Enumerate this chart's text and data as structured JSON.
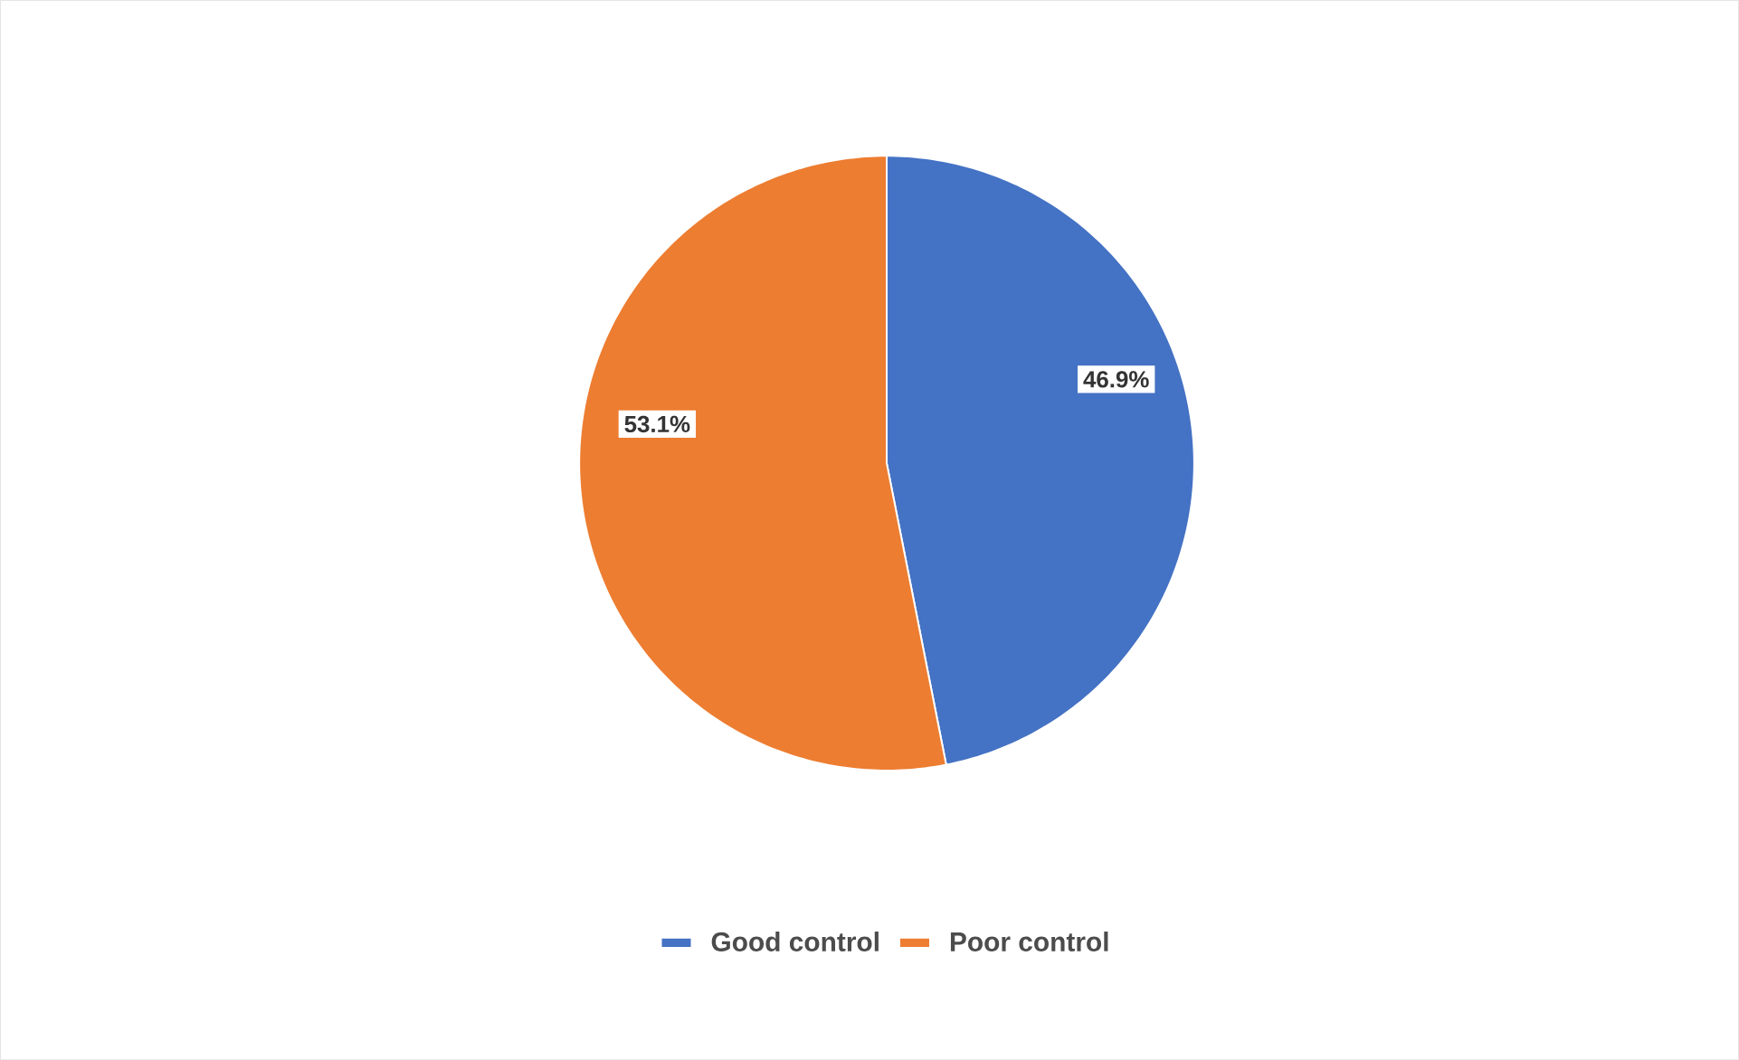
{
  "chart_data": {
    "type": "pie",
    "categories": [
      "Good control",
      "Poor control"
    ],
    "values": [
      46.9,
      53.1
    ],
    "colors": [
      "#4472c4",
      "#ed7d31"
    ],
    "value_labels": [
      "46.9%",
      "53.1%"
    ],
    "legend": "bottom"
  }
}
